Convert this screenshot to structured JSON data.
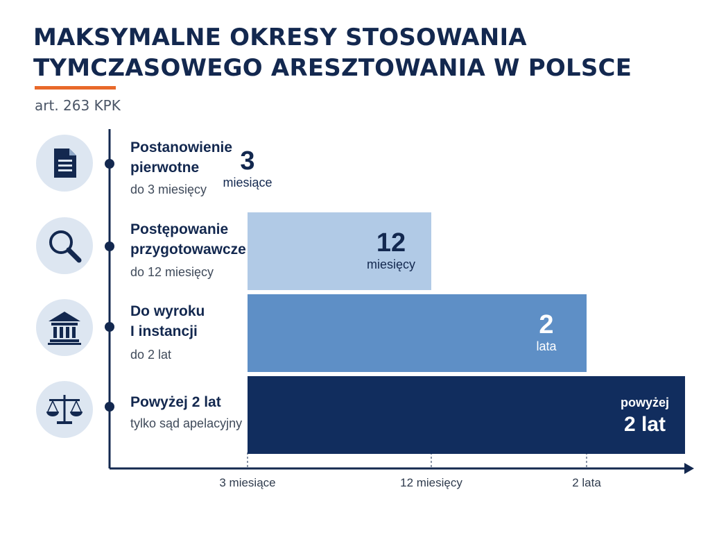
{
  "header": {
    "title_lines": [
      "MAKSYMALNE OKRESY STOSOWANIA",
      "TYMCZASOWEGO ARESZTOWANIA W POLSCE"
    ],
    "subtitle": "art. 263 KPK",
    "accent_color": "#e8692a"
  },
  "categories": [
    {
      "icon": "document-icon",
      "label_lines": [
        "Postanowienie",
        "pierwotne"
      ],
      "sublabel": "do 3 miesięcy"
    },
    {
      "icon": "magnifier-icon",
      "label_lines": [
        "Postępowanie",
        "przygotowawcze"
      ],
      "sublabel": "do 12 miesięcy"
    },
    {
      "icon": "courthouse-icon",
      "label_lines": [
        "Do wyroku",
        "I instancji"
      ],
      "sublabel": "do 2 lat"
    },
    {
      "icon": "scales-icon",
      "label_lines": [
        "Powyżej 2 lat"
      ],
      "sublabel": "tylko sąd apelacyjny"
    }
  ],
  "chart_data": {
    "type": "bar",
    "orientation": "horizontal",
    "unit": "months",
    "categories": [
      "Postanowienie pierwotne",
      "Postępowanie przygotowawcze",
      "Do wyroku I instancji",
      "Powyżej 2 lat"
    ],
    "values": [
      3,
      12,
      24,
      30
    ],
    "bar_labels": [
      {
        "top": "3",
        "bottom": "miesiące",
        "top_large": true
      },
      {
        "top": "12",
        "bottom": "miesięcy",
        "top_large": true
      },
      {
        "top": "2",
        "bottom": "lata",
        "top_large": true
      },
      {
        "top": "powyżej",
        "bottom": "2 lat",
        "top_large": false
      }
    ],
    "bar_colors": [
      "#dde6f1",
      "#b1cae6",
      "#5e8fc6",
      "#112d5e"
    ],
    "bar_text_colors": [
      "#13284f",
      "#13284f",
      "#ffffff",
      "#ffffff"
    ],
    "x_ticks": [
      {
        "value": 3,
        "label": "3 miesiące"
      },
      {
        "value": 12,
        "label": "12 miesięcy"
      },
      {
        "value": 24,
        "label": "2 lata"
      }
    ],
    "xlim": [
      0,
      30
    ],
    "xlabel": "",
    "ylabel": "",
    "grid": false,
    "axis_color": "#13284f"
  }
}
